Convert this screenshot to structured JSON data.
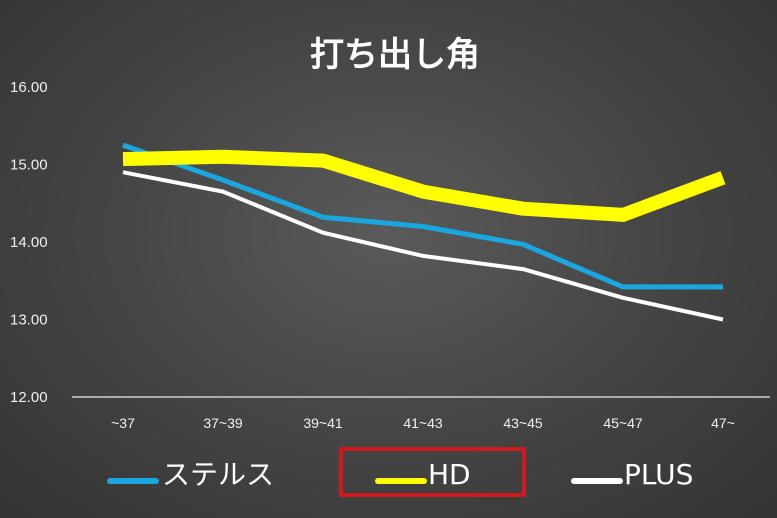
{
  "chart_data": {
    "type": "line",
    "title": "打ち出し角",
    "categories": [
      "~37",
      "37~39",
      "39~41",
      "41~43",
      "43~45",
      "45~47",
      "47~"
    ],
    "y_ticks": [
      "12.00",
      "13.00",
      "14.00",
      "15.00",
      "16.00"
    ],
    "ylim": [
      12,
      16
    ],
    "grid": false,
    "legend_position": "bottom",
    "series": [
      {
        "name": "ステルス",
        "color": "#1aa7e0",
        "values": [
          15.25,
          14.8,
          14.32,
          14.2,
          13.97,
          13.42,
          13.42
        ]
      },
      {
        "name": "HD",
        "color": "#ffff00",
        "values": [
          15.07,
          15.1,
          15.05,
          14.65,
          14.43,
          14.35,
          14.83
        ]
      },
      {
        "name": "PLUS",
        "color": "#ffffff",
        "values": [
          14.9,
          14.65,
          14.12,
          13.82,
          13.65,
          13.28,
          13.0
        ]
      }
    ],
    "highlighted_legend": "HD",
    "highlight_color": "#d0191f"
  }
}
